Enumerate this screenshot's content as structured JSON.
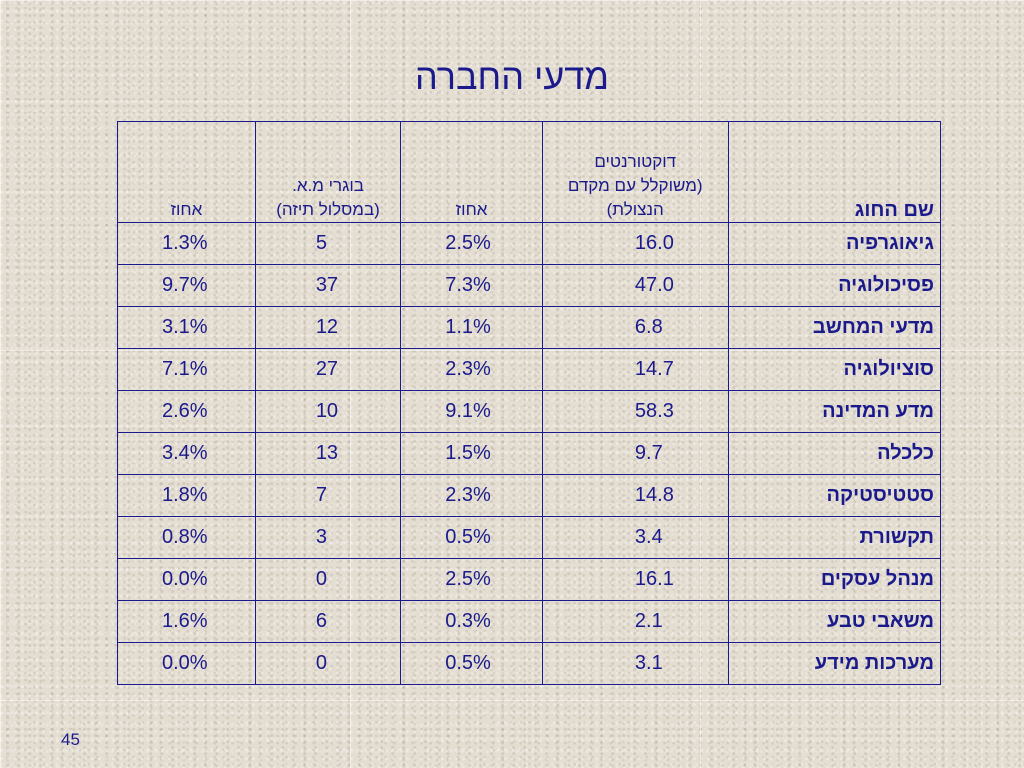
{
  "slide": {
    "title": "מדעי החברה",
    "page_number": "45"
  },
  "table": {
    "headers": {
      "name": "שם החוג",
      "doctorates_line1": "דוקטורנטים",
      "doctorates_line2": "(משוקלל עם מקדם",
      "doctorates_line3": "הנצולת)",
      "pct1": "אחוז",
      "ma_line1": "בוגרי מ.א.",
      "ma_line2": "(במסלול תיזה)",
      "pct2": "אחוז"
    },
    "rows": [
      {
        "name": "גיאוגרפיה",
        "doctorates": "16.0",
        "pct1": "2.5%",
        "ma": "5",
        "pct2": "1.3%"
      },
      {
        "name": "פסיכולוגיה",
        "doctorates": "47.0",
        "pct1": "7.3%",
        "ma": "37",
        "pct2": "9.7%"
      },
      {
        "name": "מדעי המחשב",
        "doctorates": "6.8",
        "pct1": "1.1%",
        "ma": "12",
        "pct2": "3.1%"
      },
      {
        "name": "סוציולוגיה",
        "doctorates": "14.7",
        "pct1": "2.3%",
        "ma": "27",
        "pct2": "7.1%"
      },
      {
        "name": "מדע המדינה",
        "doctorates": "58.3",
        "pct1": "9.1%",
        "ma": "10",
        "pct2": "2.6%"
      },
      {
        "name": "כלכלה",
        "doctorates": "9.7",
        "pct1": "1.5%",
        "ma": "13",
        "pct2": "3.4%"
      },
      {
        "name": "סטטיסטיקה",
        "doctorates": "14.8",
        "pct1": "2.3%",
        "ma": "7",
        "pct2": "1.8%"
      },
      {
        "name": "תקשורת",
        "doctorates": "3.4",
        "pct1": "0.5%",
        "ma": "3",
        "pct2": "0.8%"
      },
      {
        "name": "מנהל עסקים",
        "doctorates": "16.1",
        "pct1": "2.5%",
        "ma": "0",
        "pct2": "0.0%"
      },
      {
        "name": "משאבי טבע",
        "doctorates": "2.1",
        "pct1": "0.3%",
        "ma": "6",
        "pct2": "1.6%"
      },
      {
        "name": "מערכות מידע",
        "doctorates": "3.1",
        "pct1": "0.5%",
        "ma": "0",
        "pct2": "0.0%"
      }
    ]
  },
  "colors": {
    "text": "#1a1a8c",
    "background": "#e4ddd1"
  }
}
